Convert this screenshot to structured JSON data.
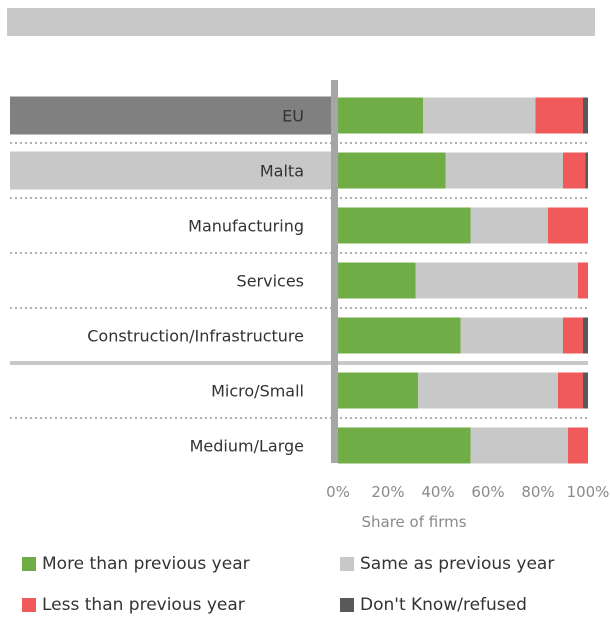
{
  "chart_data": {
    "type": "bar",
    "orientation": "horizontal",
    "stacked": true,
    "categories": [
      "EU",
      "Malta",
      "Manufacturing",
      "Services",
      "Construction/Infrastructure",
      "Micro/Small",
      "Medium/Large"
    ],
    "highlighted": {
      "EU": "#808080",
      "Malta": "#c8c8c8"
    },
    "series": [
      {
        "name": "More than previous year",
        "color": "#70ad47",
        "values": [
          34,
          43,
          53,
          31,
          49,
          32,
          53
        ]
      },
      {
        "name": "Same as previous year",
        "color": "#c8c8c8",
        "values": [
          45,
          47,
          31,
          65,
          41,
          56,
          39
        ]
      },
      {
        "name": "Less than previous year",
        "color": "#f05a5a",
        "values": [
          19,
          9,
          16,
          4,
          8,
          10,
          8
        ]
      },
      {
        "name": "Don't Know/refused",
        "color": "#595959",
        "values": [
          2,
          1,
          0,
          0,
          2,
          2,
          0
        ]
      }
    ],
    "xlim": [
      0,
      100
    ],
    "xticks": [
      "0%",
      "20%",
      "40%",
      "60%",
      "80%",
      "100%"
    ],
    "xlabel": "Share of firms",
    "legend_position": "bottom"
  }
}
